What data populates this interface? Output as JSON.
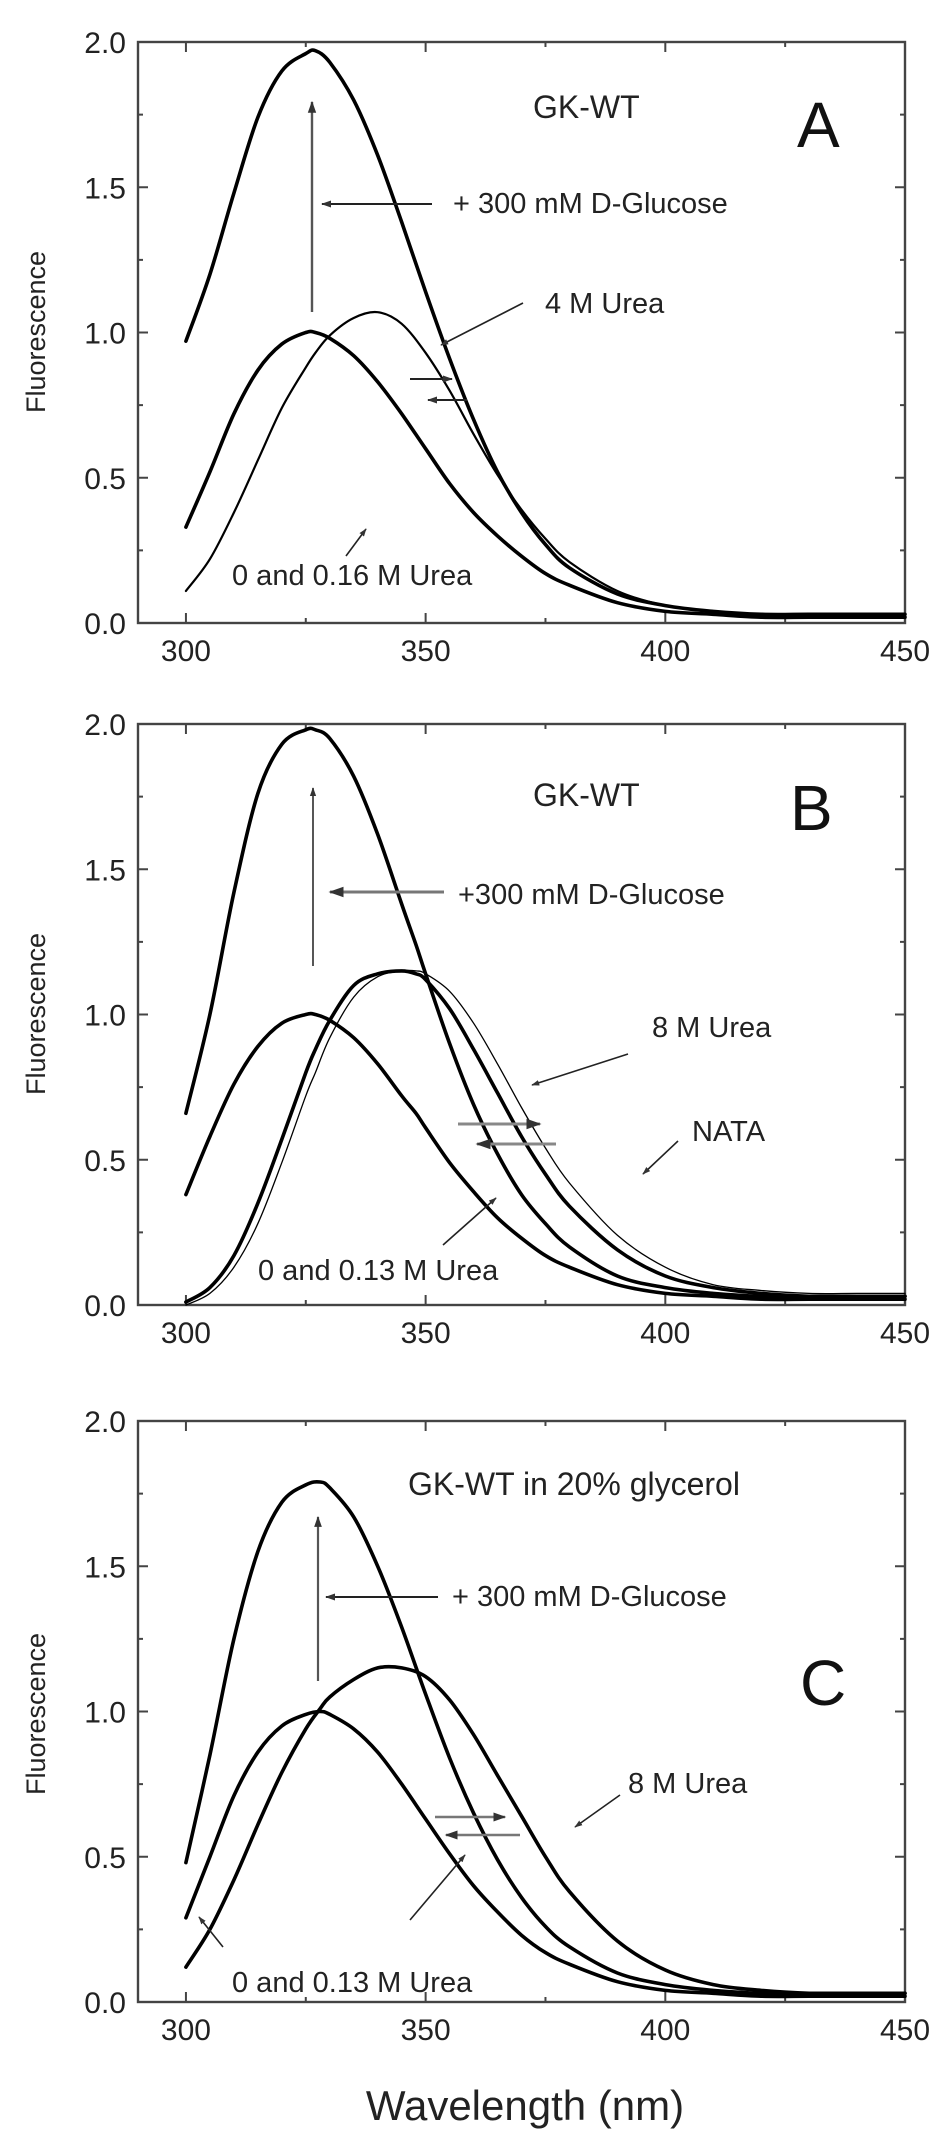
{
  "chart_data": [
    {
      "type": "line",
      "panel_label": "A",
      "title": "GK-WT",
      "xlabel": "",
      "ylabel": "Fluorescence",
      "xlim": [
        290,
        450
      ],
      "ylim": [
        0.0,
        2.0
      ],
      "xticks": [
        "300",
        "350",
        "400",
        "450"
      ],
      "yticks": [
        "0.0",
        "0.5",
        "1.0",
        "1.5",
        "2.0"
      ],
      "grid": false,
      "x": [
        300,
        305,
        310,
        315,
        320,
        325,
        327,
        330,
        335,
        340,
        345,
        350,
        355,
        360,
        365,
        370,
        375,
        380,
        390,
        400,
        410,
        420,
        430,
        440,
        450
      ],
      "series": [
        {
          "name": "+ 300 mM D-Glucose",
          "values": [
            0.97,
            1.2,
            1.48,
            1.74,
            1.9,
            1.96,
            1.97,
            1.93,
            1.8,
            1.61,
            1.38,
            1.14,
            0.91,
            0.7,
            0.52,
            0.38,
            0.27,
            0.19,
            0.1,
            0.06,
            0.04,
            0.03,
            0.03,
            0.03,
            0.03
          ],
          "weight": "bold"
        },
        {
          "name": "0 and 0.16 M Urea",
          "values": [
            0.33,
            0.52,
            0.72,
            0.87,
            0.96,
            1.0,
            1.0,
            0.98,
            0.92,
            0.83,
            0.72,
            0.6,
            0.48,
            0.38,
            0.3,
            0.23,
            0.17,
            0.13,
            0.07,
            0.04,
            0.03,
            0.02,
            0.02,
            0.02,
            0.02
          ],
          "weight": "bold"
        },
        {
          "name": "4 M Urea",
          "values": [
            0.11,
            0.22,
            0.38,
            0.56,
            0.74,
            0.88,
            0.93,
            0.99,
            1.05,
            1.07,
            1.03,
            0.93,
            0.8,
            0.65,
            0.51,
            0.39,
            0.29,
            0.21,
            0.11,
            0.06,
            0.04,
            0.03,
            0.03,
            0.03,
            0.03
          ],
          "weight": "normal"
        }
      ],
      "annotations": [
        "+ 300 mM D-Glucose",
        "4 M Urea",
        "0 and 0.16 M Urea"
      ]
    },
    {
      "type": "line",
      "panel_label": "B",
      "title": "GK-WT",
      "xlabel": "",
      "ylabel": "Fluorescence",
      "xlim": [
        290,
        450
      ],
      "ylim": [
        0.0,
        2.0
      ],
      "xticks": [
        "300",
        "350",
        "400",
        "450"
      ],
      "yticks": [
        "0.0",
        "0.5",
        "1.0",
        "1.5",
        "2.0"
      ],
      "grid": false,
      "x": [
        300,
        305,
        310,
        315,
        320,
        325,
        327,
        330,
        335,
        340,
        345,
        348,
        350,
        355,
        360,
        365,
        370,
        375,
        380,
        390,
        400,
        410,
        420,
        430,
        440,
        450
      ],
      "series": [
        {
          "name": "+300 mM D-Glucose",
          "values": [
            0.66,
            1.0,
            1.42,
            1.76,
            1.93,
            1.98,
            1.98,
            1.95,
            1.82,
            1.62,
            1.38,
            1.24,
            1.14,
            0.9,
            0.69,
            0.52,
            0.38,
            0.28,
            0.2,
            0.1,
            0.06,
            0.04,
            0.03,
            0.03,
            0.03,
            0.03
          ],
          "weight": "bold"
        },
        {
          "name": "0 and 0.13 M Urea",
          "values": [
            0.38,
            0.58,
            0.76,
            0.89,
            0.97,
            1.0,
            1.0,
            0.98,
            0.92,
            0.83,
            0.72,
            0.66,
            0.61,
            0.49,
            0.39,
            0.3,
            0.23,
            0.17,
            0.13,
            0.07,
            0.04,
            0.03,
            0.02,
            0.02,
            0.02,
            0.02
          ],
          "weight": "bold"
        },
        {
          "name": "8 M Urea",
          "values": [
            0.01,
            0.06,
            0.17,
            0.35,
            0.57,
            0.8,
            0.88,
            0.98,
            1.1,
            1.14,
            1.15,
            1.14,
            1.12,
            1.02,
            0.88,
            0.73,
            0.58,
            0.45,
            0.34,
            0.19,
            0.1,
            0.06,
            0.04,
            0.03,
            0.03,
            0.03
          ],
          "weight": "bold"
        },
        {
          "name": "NATA",
          "values": [
            0.0,
            0.04,
            0.13,
            0.28,
            0.49,
            0.72,
            0.8,
            0.92,
            1.06,
            1.13,
            1.15,
            1.15,
            1.14,
            1.08,
            0.97,
            0.83,
            0.68,
            0.54,
            0.42,
            0.24,
            0.13,
            0.07,
            0.05,
            0.04,
            0.04,
            0.04
          ],
          "weight": "thin"
        }
      ],
      "annotations": [
        "+300 mM D-Glucose",
        "8 M Urea",
        "NATA",
        "0 and 0.13 M Urea"
      ]
    },
    {
      "type": "line",
      "panel_label": "C",
      "title": "GK-WT in 20% glycerol",
      "xlabel": "Wavelength (nm)",
      "ylabel": "Fluorescence",
      "xlim": [
        290,
        450
      ],
      "ylim": [
        0.0,
        2.0
      ],
      "xticks": [
        "300",
        "350",
        "400",
        "450"
      ],
      "yticks": [
        "0.0",
        "0.5",
        "1.0",
        "1.5",
        "2.0"
      ],
      "grid": false,
      "x": [
        300,
        305,
        310,
        315,
        320,
        325,
        328,
        330,
        335,
        340,
        345,
        350,
        355,
        360,
        365,
        370,
        375,
        380,
        390,
        400,
        410,
        420,
        430,
        440,
        450
      ],
      "series": [
        {
          "name": "+ 300 mM D-Glucose",
          "values": [
            0.48,
            0.85,
            1.25,
            1.55,
            1.72,
            1.78,
            1.79,
            1.77,
            1.67,
            1.5,
            1.29,
            1.06,
            0.84,
            0.65,
            0.49,
            0.36,
            0.26,
            0.19,
            0.1,
            0.06,
            0.04,
            0.03,
            0.03,
            0.03,
            0.03
          ],
          "weight": "bold"
        },
        {
          "name": "0 and 0.13 M Urea",
          "values": [
            0.29,
            0.5,
            0.71,
            0.86,
            0.95,
            0.99,
            1.0,
            0.99,
            0.94,
            0.86,
            0.75,
            0.63,
            0.51,
            0.4,
            0.31,
            0.23,
            0.17,
            0.13,
            0.07,
            0.04,
            0.03,
            0.02,
            0.02,
            0.02,
            0.02
          ],
          "weight": "bold"
        },
        {
          "name": "8 M Urea",
          "values": [
            0.12,
            0.25,
            0.42,
            0.61,
            0.79,
            0.94,
            1.01,
            1.05,
            1.11,
            1.15,
            1.15,
            1.12,
            1.04,
            0.92,
            0.78,
            0.64,
            0.5,
            0.38,
            0.21,
            0.11,
            0.06,
            0.04,
            0.03,
            0.03,
            0.03
          ],
          "weight": "bold"
        }
      ],
      "annotations": [
        "+ 300 mM D-Glucose",
        "8 M Urea",
        "0 and 0.13 M Urea"
      ]
    }
  ]
}
